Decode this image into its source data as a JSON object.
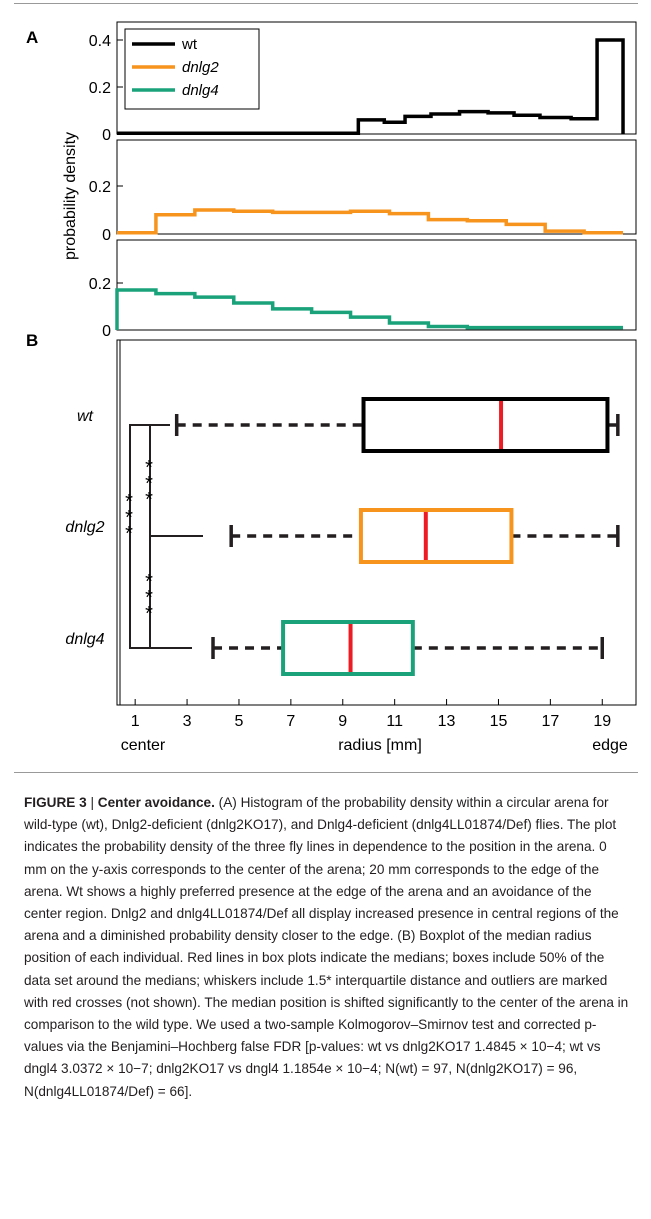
{
  "figure": {
    "panel_a_label": "A",
    "panel_b_label": "B",
    "ylabel": "probability density"
  },
  "colors": {
    "wt": "#000000",
    "dnlg2": "#f7941d",
    "dnlg4": "#1aa37a",
    "median": "#ed1c24"
  },
  "chart_data": [
    {
      "type": "histogram",
      "panel": "A",
      "ylabel": "probability density",
      "bin_edges": [
        0,
        1.5,
        3,
        4.5,
        6,
        7.5,
        9,
        10.5,
        12,
        13.5,
        15,
        16.5,
        18,
        19.5
      ],
      "xlim": [
        0,
        20
      ],
      "legend_position": "top-left",
      "subplots": [
        {
          "name": "wt",
          "color": "#000000",
          "yticks": [
            "0",
            "0.2",
            "0.4"
          ],
          "ylim": [
            0,
            0.4
          ],
          "edges": [
            0,
            1.5,
            3,
            4.5,
            6,
            7.5,
            9,
            9.3,
            10.3,
            11.1,
            12.1,
            13.2,
            14.3,
            15.3,
            16.3,
            17.5,
            18.5,
            19.5
          ],
          "values": [
            0.003,
            0.003,
            0.003,
            0.003,
            0.003,
            0.003,
            0.003,
            0.06,
            0.05,
            0.075,
            0.085,
            0.095,
            0.09,
            0.08,
            0.07,
            0.065,
            0.4
          ]
        },
        {
          "name": "dnlg2",
          "color": "#f7941d",
          "yticks": [
            "0",
            "0.2"
          ],
          "ylim": [
            0,
            0.2
          ],
          "edges": [
            0,
            1.5,
            3,
            4.5,
            6,
            7.5,
            9,
            10.5,
            12,
            13.5,
            15,
            16.5,
            18,
            19.5
          ],
          "values": [
            0.005,
            0.08,
            0.1,
            0.095,
            0.09,
            0.09,
            0.095,
            0.085,
            0.06,
            0.055,
            0.04,
            0.012,
            0.005
          ]
        },
        {
          "name": "dnlg4",
          "color": "#1aa37a",
          "yticks": [
            "0",
            "0.2"
          ],
          "ylim": [
            0,
            0.2
          ],
          "edges": [
            0,
            1.5,
            3,
            4.5,
            6,
            7.5,
            9,
            10.5,
            12,
            13.5,
            15,
            16.5,
            18,
            19.5
          ],
          "values": [
            0.17,
            0.155,
            0.14,
            0.115,
            0.09,
            0.075,
            0.055,
            0.03,
            0.015,
            0.01,
            0.01,
            0.01,
            0.01
          ]
        }
      ],
      "legend": [
        {
          "label": "wt",
          "color": "#000000"
        },
        {
          "label": "dnlg2",
          "color": "#f7941d"
        },
        {
          "label": "dnlg4",
          "color": "#1aa37a"
        }
      ]
    },
    {
      "type": "boxplot",
      "panel": "B",
      "orientation": "horizontal",
      "xlabel": "radius [mm]",
      "xlabel_left": "center",
      "xlabel_right": "edge",
      "xlim": [
        0.3,
        20.3
      ],
      "xticks": [
        1,
        3,
        5,
        7,
        9,
        11,
        13,
        15,
        17,
        19
      ],
      "series": [
        {
          "name": "wt",
          "color": "#000000",
          "whisker_low": 2.6,
          "q1": 9.8,
          "median": 15.1,
          "q3": 19.2,
          "whisker_high": 19.6
        },
        {
          "name": "dnlg2",
          "color": "#f7941d",
          "whisker_low": 4.7,
          "q1": 9.7,
          "median": 12.2,
          "q3": 15.5,
          "whisker_high": 19.6
        },
        {
          "name": "dnlg4",
          "color": "#1aa37a",
          "whisker_low": 4.0,
          "q1": 6.7,
          "median": 9.3,
          "q3": 11.7,
          "whisker_high": 19.0
        }
      ],
      "significance": [
        {
          "pair": [
            "wt",
            "dnlg2"
          ],
          "label": "***"
        },
        {
          "pair": [
            "wt",
            "dnlg4"
          ],
          "label": "***"
        },
        {
          "pair": [
            "dnlg2",
            "dnlg4"
          ],
          "label": "***"
        }
      ]
    }
  ],
  "caption": {
    "figure_label": "FIGURE 3",
    "separator": " | ",
    "title": "Center avoidance.",
    "text": " (A) Histogram of the probability density within a circular arena for wild-type (wt), Dnlg2-deficient (dnlg2KO17), and Dnlg4-deficient (dnlg4LL01874/Def) flies. The plot indicates the probability density of the three fly lines in dependence to the position in the arena. 0 mm on the y-axis corresponds to the center of the arena; 20 mm corresponds to the edge of the arena. Wt shows a highly preferred presence at the edge of the arena and an avoidance of the center region. Dnlg2 and dnlg4LL01874/Def all display increased presence in central regions of the arena and a diminished probability density closer to the edge. (B) Boxplot of the median radius position of each individual. Red lines in box plots indicate the medians; boxes include 50% of the data set around the medians; whiskers include 1.5* interquartile distance and outliers are marked with red crosses (not shown). The median position is shifted significantly to the center of the arena in comparison to the wild type. We used a two-sample Kolmogorov–Smirnov test and corrected p-values via the Benjamini–Hochberg false FDR [p-values: wt vs dnlg2KO17 1.4845 × 10−4; wt vs dngl4 3.0372 × 10−7; dnlg2KO17 vs dngl4 1.1854e × 10−4; N(wt) = 97, N(dnlg2KO17) = 96, N(dnlg4LL01874/Def) = 66]."
  }
}
